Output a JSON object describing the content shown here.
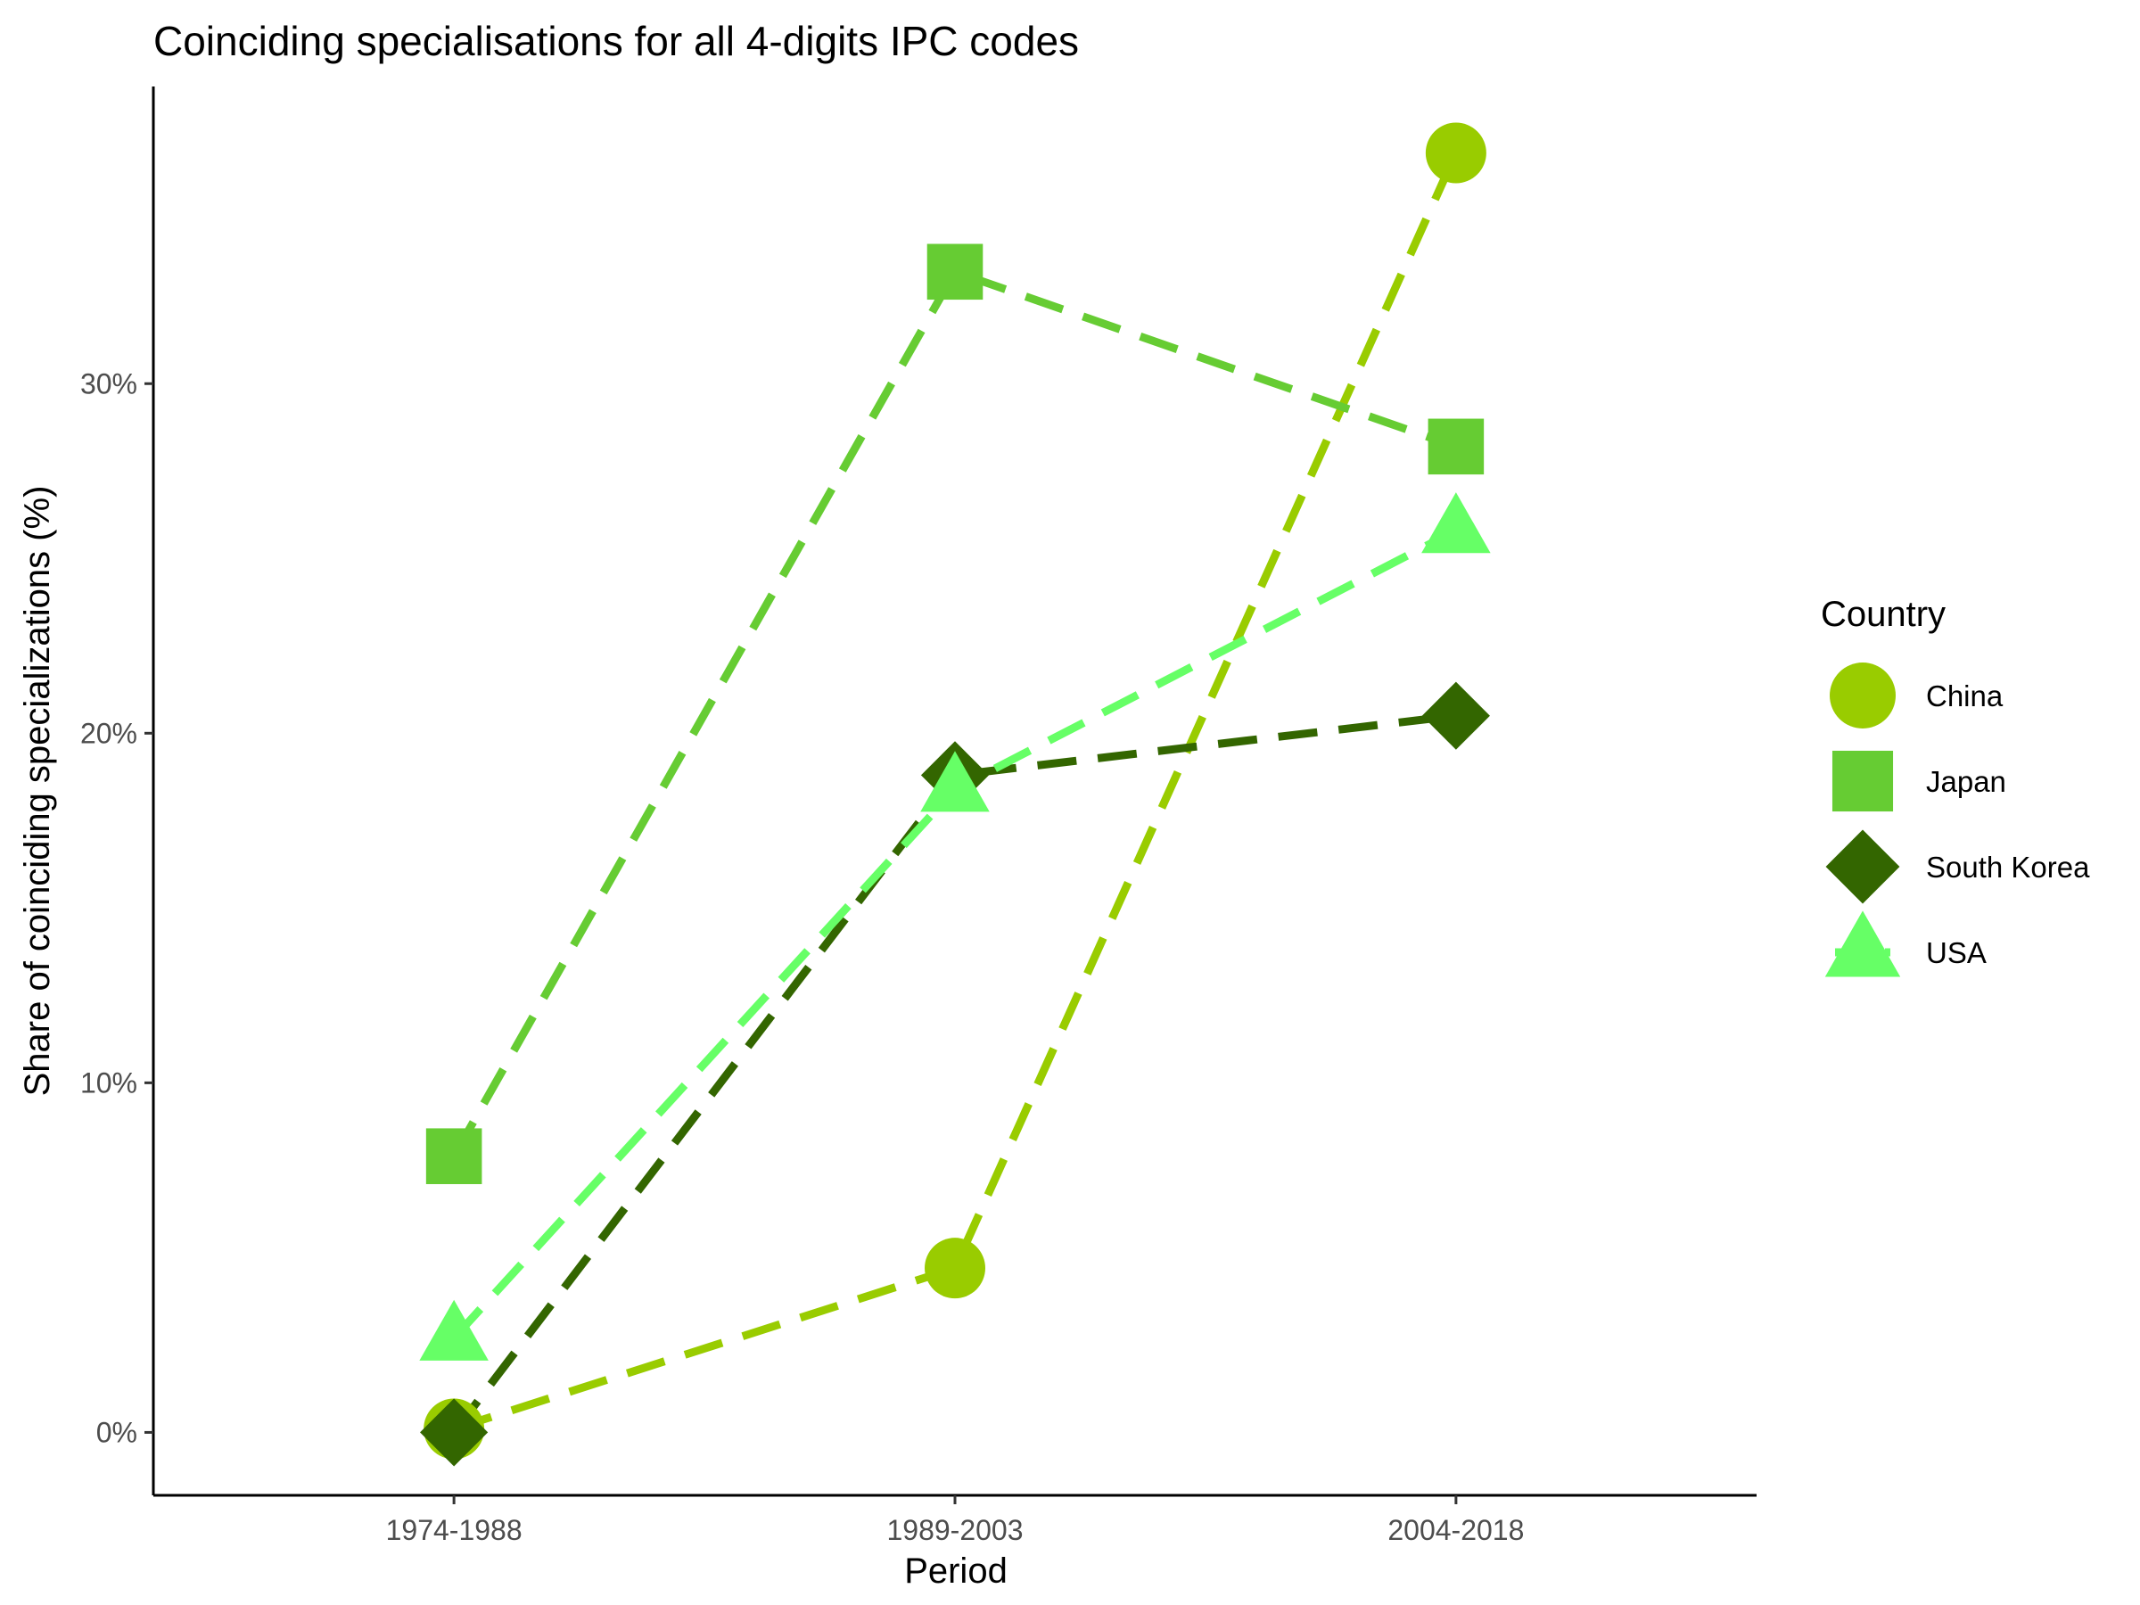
{
  "chart_data": {
    "type": "line",
    "title": "Coinciding specialisations for all 4-digits IPC codes",
    "xlabel": "Period",
    "ylabel": "Share of coinciding specializations (%)",
    "categories": [
      "1974-1988",
      "1989-2003",
      "2004-2018"
    ],
    "ylim": [
      -1.8,
      38.5
    ],
    "yticks": [
      0,
      10,
      20,
      30
    ],
    "ytick_labels": [
      "0%",
      "10%",
      "20%",
      "30%"
    ],
    "grid": false,
    "legend": {
      "title": "Country",
      "position": "right"
    },
    "series": [
      {
        "name": "China",
        "values": [
          0.1,
          4.7,
          36.6
        ],
        "color": "#99CC00",
        "marker": "circle"
      },
      {
        "name": "Japan",
        "values": [
          7.9,
          33.2,
          28.2
        ],
        "color": "#66CC33",
        "marker": "square"
      },
      {
        "name": "South Korea",
        "values": [
          0.0,
          18.8,
          20.5
        ],
        "color": "#336600",
        "marker": "diamond"
      },
      {
        "name": "USA",
        "values": [
          2.7,
          18.4,
          25.8
        ],
        "color": "#66FF66",
        "marker": "triangle"
      }
    ]
  }
}
